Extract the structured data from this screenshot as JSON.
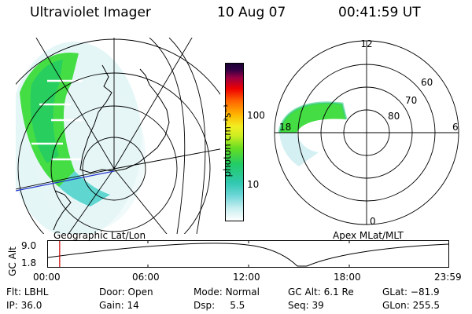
{
  "header": {
    "title": "Ultraviolet Imager",
    "date": "10 Aug 07",
    "time": "00:41:59 UT"
  },
  "left_panel": {
    "caption": "Geographic Lat/Lon"
  },
  "right_panel": {
    "caption": "Apex MLat/MLT",
    "mlt_labels": {
      "top": "12",
      "left": "18",
      "right": "6",
      "bottom": "0"
    },
    "lat_labels": [
      "60",
      "70",
      "80"
    ]
  },
  "colorbar": {
    "unit_label": "photon cm⁻²s⁻¹",
    "ticks": [
      "100",
      "10"
    ],
    "scale": "log",
    "colors": [
      "#ffffff",
      "#b7e8ec",
      "#4fd4d4",
      "#22cc88",
      "#44dd22",
      "#aaee22",
      "#eeee22",
      "#ffaa00",
      "#ff6600",
      "#ee0000",
      "#aa0033",
      "#660066",
      "#220044"
    ]
  },
  "timeline": {
    "ylabel": "GC Alt",
    "y_ticks": [
      "9.0",
      "1.8"
    ],
    "x_ticks": [
      "00:00",
      "06:00",
      "12:00",
      "18:00",
      "23:59"
    ],
    "marker_time": "00:41:59",
    "marker_color": "#cc0000"
  },
  "stats": {
    "flt": {
      "label": "Flt:",
      "value": "LBHL"
    },
    "ip": {
      "label": "IP:",
      "value": "36.0"
    },
    "door": {
      "label": "Door:",
      "value": "Open"
    },
    "gain": {
      "label": "Gain:",
      "value": "14"
    },
    "mode": {
      "label": "Mode:",
      "value": "Normal"
    },
    "dsp": {
      "label": "Dsp:",
      "value": "5.5"
    },
    "gcalt": {
      "label": "GC Alt:",
      "value": "6.1 Re"
    },
    "seq": {
      "label": "Seq:",
      "value": "39"
    },
    "glat": {
      "label": "GLat:",
      "value": "−81.9"
    },
    "glon": {
      "label": "GLon:",
      "value": "255.5"
    }
  }
}
